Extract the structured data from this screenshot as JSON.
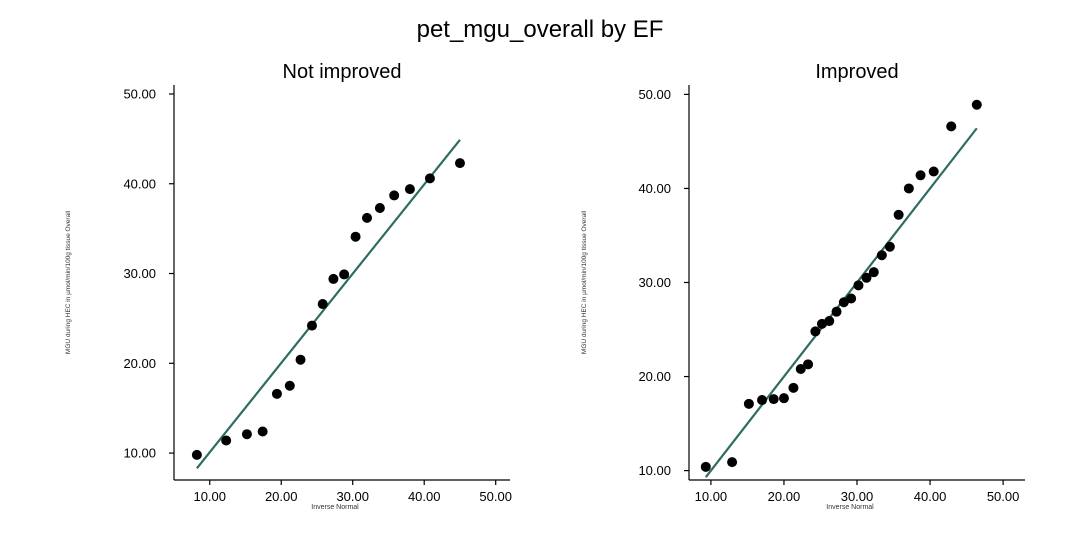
{
  "chart_data": {
    "type": "scatter",
    "title": "pet_mgu_overall by EF",
    "colors": {
      "points": "#000000",
      "fit_line": "#2e6b63"
    },
    "panels": [
      {
        "title": "Not improved",
        "xlabel": "Inverse Normal",
        "ylabel": "MGU during HEC in µmol/min/100g tissue Overall",
        "xlim": [
          5,
          52
        ],
        "ylim": [
          7,
          51
        ],
        "xticks": [
          "10.00",
          "20.00",
          "30.00",
          "40.00",
          "50.00"
        ],
        "yticks": [
          "10.00",
          "20.00",
          "30.00",
          "40.00",
          "50.00"
        ],
        "points": [
          [
            8.2,
            9.8
          ],
          [
            12.3,
            11.4
          ],
          [
            15.2,
            12.1
          ],
          [
            17.4,
            12.4
          ],
          [
            19.4,
            16.6
          ],
          [
            21.2,
            17.5
          ],
          [
            22.7,
            20.4
          ],
          [
            24.3,
            24.2
          ],
          [
            25.8,
            26.6
          ],
          [
            27.3,
            29.4
          ],
          [
            28.8,
            29.9
          ],
          [
            30.4,
            34.1
          ],
          [
            32.0,
            36.2
          ],
          [
            33.8,
            37.3
          ],
          [
            35.8,
            38.7
          ],
          [
            38.0,
            39.4
          ],
          [
            40.8,
            40.6
          ],
          [
            45.0,
            42.3
          ]
        ],
        "fit": [
          [
            8.2,
            8.3
          ],
          [
            45.0,
            44.9
          ]
        ]
      },
      {
        "title": "Improved",
        "xlabel": "Inverse Normal",
        "ylabel": "MGU during HEC in µmol/min/100g tissue Overall",
        "xlim": [
          7,
          53
        ],
        "ylim": [
          9,
          51
        ],
        "xticks": [
          "10.00",
          "20.00",
          "30.00",
          "40.00",
          "50.00"
        ],
        "yticks": [
          "10.00",
          "20.00",
          "30.00",
          "40.00",
          "50.00"
        ],
        "points": [
          [
            9.3,
            10.4
          ],
          [
            12.9,
            10.9
          ],
          [
            15.2,
            17.1
          ],
          [
            17.0,
            17.5
          ],
          [
            18.6,
            17.6
          ],
          [
            20.0,
            17.7
          ],
          [
            21.3,
            18.8
          ],
          [
            22.3,
            20.8
          ],
          [
            23.3,
            21.3
          ],
          [
            24.3,
            24.8
          ],
          [
            25.2,
            25.6
          ],
          [
            26.2,
            25.9
          ],
          [
            27.2,
            26.9
          ],
          [
            28.2,
            27.9
          ],
          [
            29.2,
            28.3
          ],
          [
            30.2,
            29.7
          ],
          [
            31.3,
            30.5
          ],
          [
            32.3,
            31.1
          ],
          [
            33.4,
            32.9
          ],
          [
            34.5,
            33.8
          ],
          [
            35.7,
            37.2
          ],
          [
            37.1,
            40.0
          ],
          [
            38.7,
            41.4
          ],
          [
            40.5,
            41.8
          ],
          [
            42.9,
            46.6
          ],
          [
            46.4,
            48.9
          ]
        ],
        "fit": [
          [
            9.3,
            9.3
          ],
          [
            46.4,
            46.4
          ]
        ]
      }
    ]
  }
}
